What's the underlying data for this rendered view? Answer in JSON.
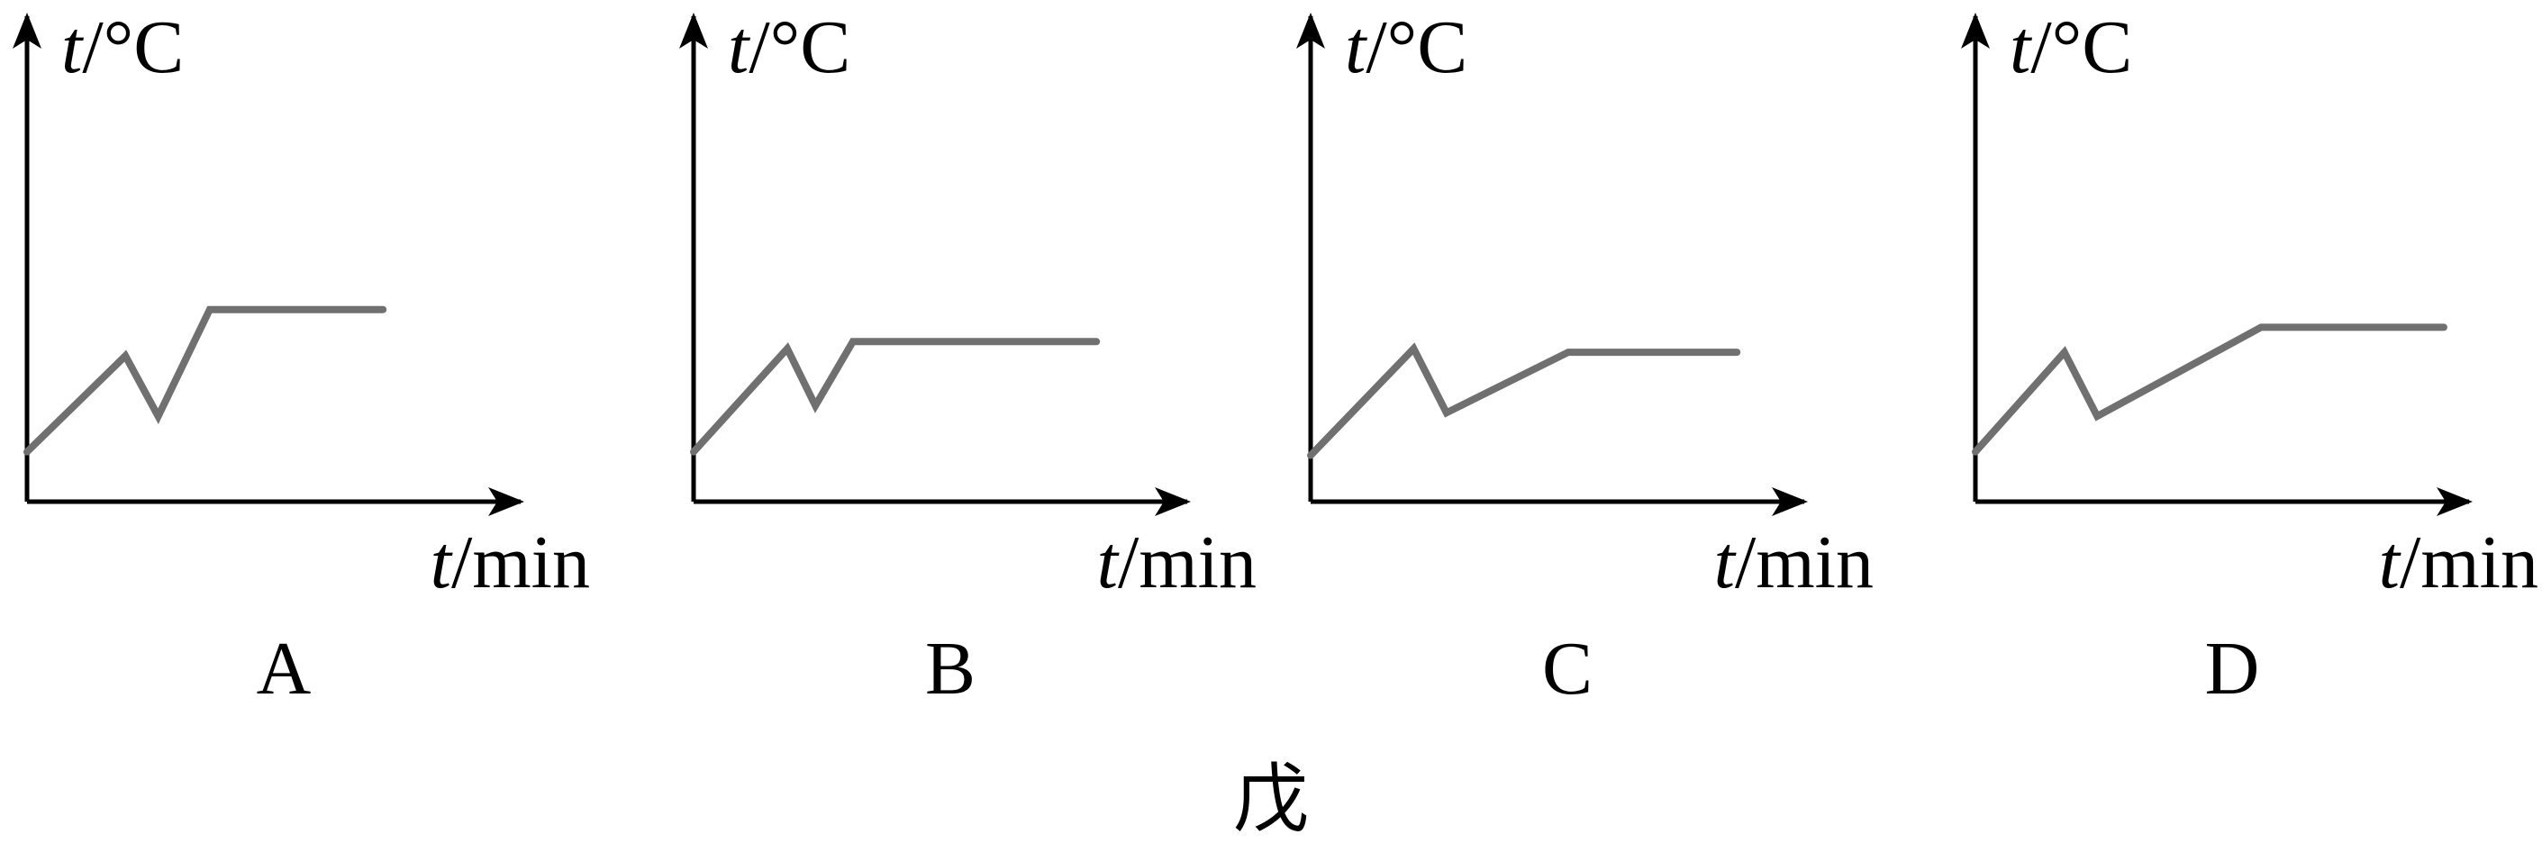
{
  "figure": {
    "caption": "戊"
  },
  "chart_data": [
    {
      "type": "line",
      "panel_label": "A",
      "ylabel_var": "t",
      "ylabel_unit": "/°C",
      "xlabel_var": "t",
      "xlabel_unit": "/min",
      "xlim": [
        0,
        10
      ],
      "ylim": [
        0,
        10
      ],
      "points": [
        [
          0,
          1.4
        ],
        [
          2.1,
          4.1
        ],
        [
          2.8,
          2.4
        ],
        [
          3.9,
          5.4
        ],
        [
          7.6,
          5.4
        ]
      ],
      "line_color": "#707070"
    },
    {
      "type": "line",
      "panel_label": "B",
      "ylabel_var": "t",
      "ylabel_unit": "/°C",
      "xlabel_var": "t",
      "xlabel_unit": "/min",
      "xlim": [
        0,
        10
      ],
      "ylim": [
        0,
        10
      ],
      "points": [
        [
          0,
          1.4
        ],
        [
          2.0,
          4.3
        ],
        [
          2.6,
          2.7
        ],
        [
          3.4,
          4.5
        ],
        [
          8.6,
          4.5
        ]
      ],
      "line_color": "#707070"
    },
    {
      "type": "line",
      "panel_label": "C",
      "ylabel_var": "t",
      "ylabel_unit": "/°C",
      "xlabel_var": "t",
      "xlabel_unit": "/min",
      "xlim": [
        0,
        10
      ],
      "ylim": [
        0,
        10
      ],
      "points": [
        [
          0,
          1.3
        ],
        [
          2.2,
          4.3
        ],
        [
          2.9,
          2.5
        ],
        [
          5.5,
          4.2
        ],
        [
          9.1,
          4.2
        ]
      ],
      "line_color": "#707070"
    },
    {
      "type": "line",
      "panel_label": "D",
      "ylabel_var": "t",
      "ylabel_unit": "/°C",
      "xlabel_var": "t",
      "xlabel_unit": "/min",
      "xlim": [
        0,
        10
      ],
      "ylim": [
        0,
        10
      ],
      "points": [
        [
          0,
          1.4
        ],
        [
          1.9,
          4.2
        ],
        [
          2.6,
          2.4
        ],
        [
          6.1,
          4.9
        ],
        [
          10.0,
          4.9
        ]
      ],
      "line_color": "#707070"
    }
  ]
}
